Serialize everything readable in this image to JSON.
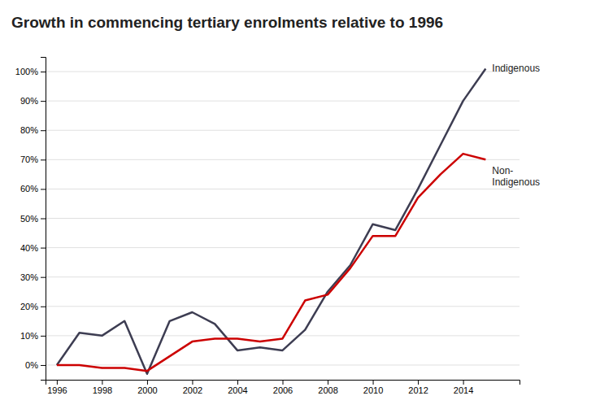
{
  "chart_data": {
    "type": "line",
    "title": "Growth in commencing tertiary enrolments relative to 1996",
    "x": [
      1996,
      1997,
      1998,
      1999,
      2000,
      2001,
      2002,
      2003,
      2004,
      2005,
      2006,
      2007,
      2008,
      2009,
      2010,
      2011,
      2012,
      2013,
      2014,
      2015
    ],
    "series": [
      {
        "name": "Indigenous",
        "color": "#3d3d52",
        "values": [
          0,
          11,
          10,
          15,
          -3,
          15,
          18,
          14,
          5,
          6,
          5,
          12,
          25,
          34,
          48,
          46,
          60,
          75,
          90,
          101
        ]
      },
      {
        "name": "Non-\nIndigenous",
        "color": "#cc0000",
        "values": [
          0,
          0,
          -1,
          -1,
          -2,
          3,
          8,
          9,
          9,
          8,
          9,
          22,
          24,
          33,
          44,
          44,
          57,
          65,
          72,
          70
        ]
      }
    ],
    "xlim": [
      1995.5,
      2016.5
    ],
    "xticks": [
      1996,
      1998,
      2000,
      2002,
      2004,
      2006,
      2008,
      2010,
      2012,
      2014
    ],
    "ylim": [
      -5,
      105
    ],
    "yticks": [
      {
        "value": 0,
        "label": "0%"
      },
      {
        "value": 10,
        "label": "10%"
      },
      {
        "value": 20,
        "label": "20%"
      },
      {
        "value": 30,
        "label": "30%"
      },
      {
        "value": 40,
        "label": "40%"
      },
      {
        "value": 50,
        "label": "50%"
      },
      {
        "value": 60,
        "label": "60%"
      },
      {
        "value": 70,
        "label": "70%"
      },
      {
        "value": 80,
        "label": "80%"
      },
      {
        "value": 90,
        "label": "90%"
      },
      {
        "value": 100,
        "label": "100%"
      }
    ],
    "grid": true
  }
}
